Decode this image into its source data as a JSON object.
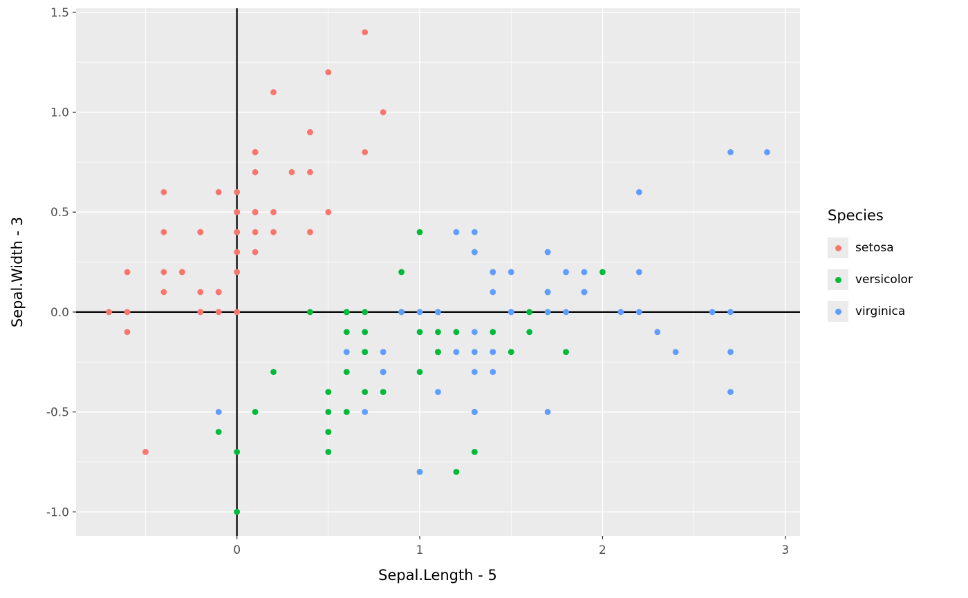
{
  "chart_data": {
    "type": "scatter",
    "title": "",
    "xlabel": "Sepal.Length - 5",
    "ylabel": "Sepal.Width - 3",
    "xlim": [
      -0.88,
      3.08
    ],
    "ylim": [
      -1.12,
      1.52
    ],
    "xticks": [
      0,
      1,
      2,
      3
    ],
    "xtick_labels": [
      "0",
      "1",
      "2",
      "3"
    ],
    "yticks": [
      -1.0,
      -0.5,
      0.0,
      0.5,
      1.0,
      1.5
    ],
    "ytick_labels": [
      "-1.0",
      "-0.5",
      "0.0",
      "0.5",
      "1.0",
      "1.5"
    ],
    "xminor": [
      -0.5,
      0.5,
      1.5,
      2.5
    ],
    "yminor": [
      -0.75,
      -0.25,
      0.25,
      0.75,
      1.25
    ],
    "grid": true,
    "panel_background": "#EBEBEB",
    "grid_major_color": "#FFFFFF",
    "grid_minor_color": "#FFFFFF",
    "tick_color": "#333333",
    "tick_label_color": "#4D4D4D",
    "point_radius": 4.4,
    "reference_lines": {
      "hline_y": 0,
      "vline_x": 0,
      "color": "#000000"
    },
    "legend": {
      "title": "Species",
      "position": "right",
      "key_background": "#EBEBEB"
    },
    "series": [
      {
        "name": "setosa",
        "color": "#F8766D",
        "points": [
          [
            0.1,
            0.5
          ],
          [
            -0.1,
            0.0
          ],
          [
            -0.3,
            0.2
          ],
          [
            -0.4,
            0.1
          ],
          [
            0.0,
            0.6
          ],
          [
            0.4,
            0.9
          ],
          [
            -0.4,
            0.4
          ],
          [
            0.0,
            0.4
          ],
          [
            -0.6,
            -0.1
          ],
          [
            -0.1,
            0.1
          ],
          [
            0.4,
            0.7
          ],
          [
            -0.2,
            0.4
          ],
          [
            -0.2,
            0.0
          ],
          [
            -0.7,
            0.0
          ],
          [
            0.8,
            1.0
          ],
          [
            0.7,
            1.4
          ],
          [
            0.4,
            0.9
          ],
          [
            0.1,
            0.5
          ],
          [
            0.7,
            0.8
          ],
          [
            0.1,
            0.8
          ],
          [
            0.4,
            0.4
          ],
          [
            0.1,
            0.7
          ],
          [
            -0.4,
            0.6
          ],
          [
            0.1,
            0.3
          ],
          [
            -0.2,
            0.4
          ],
          [
            0.0,
            0.0
          ],
          [
            0.0,
            0.4
          ],
          [
            0.2,
            0.5
          ],
          [
            0.2,
            0.4
          ],
          [
            -0.3,
            0.2
          ],
          [
            -0.2,
            0.1
          ],
          [
            0.4,
            0.4
          ],
          [
            0.2,
            1.1
          ],
          [
            0.5,
            1.2
          ],
          [
            -0.1,
            0.1
          ],
          [
            0.0,
            0.2
          ],
          [
            0.5,
            0.5
          ],
          [
            -0.1,
            0.6
          ],
          [
            -0.6,
            0.0
          ],
          [
            0.1,
            0.4
          ],
          [
            0.0,
            0.5
          ],
          [
            -0.5,
            -0.7
          ],
          [
            -0.6,
            0.2
          ],
          [
            0.0,
            0.5
          ],
          [
            0.1,
            0.8
          ],
          [
            -0.2,
            0.0
          ],
          [
            0.1,
            0.8
          ],
          [
            -0.4,
            0.2
          ],
          [
            0.3,
            0.7
          ],
          [
            0.0,
            0.3
          ]
        ]
      },
      {
        "name": "versicolor",
        "color": "#00BA38",
        "points": [
          [
            2.0,
            0.2
          ],
          [
            1.4,
            0.2
          ],
          [
            1.9,
            0.1
          ],
          [
            0.5,
            -0.7
          ],
          [
            1.5,
            -0.2
          ],
          [
            0.7,
            -0.2
          ],
          [
            1.3,
            0.3
          ],
          [
            -0.1,
            -0.6
          ],
          [
            1.6,
            -0.1
          ],
          [
            0.2,
            -0.3
          ],
          [
            0.0,
            -1.0
          ],
          [
            0.9,
            0.0
          ],
          [
            1.0,
            -0.8
          ],
          [
            1.1,
            -0.1
          ],
          [
            0.6,
            -0.1
          ],
          [
            1.7,
            0.1
          ],
          [
            0.6,
            0.0
          ],
          [
            0.8,
            -0.3
          ],
          [
            1.2,
            -0.8
          ],
          [
            0.6,
            -0.5
          ],
          [
            0.9,
            0.2
          ],
          [
            1.1,
            -0.2
          ],
          [
            1.3,
            -0.5
          ],
          [
            1.1,
            -0.2
          ],
          [
            1.4,
            -0.1
          ],
          [
            1.6,
            0.0
          ],
          [
            1.8,
            -0.2
          ],
          [
            1.7,
            0.0
          ],
          [
            1.0,
            -0.1
          ],
          [
            0.7,
            -0.4
          ],
          [
            0.5,
            -0.6
          ],
          [
            0.5,
            -0.6
          ],
          [
            0.8,
            -0.3
          ],
          [
            1.0,
            -0.3
          ],
          [
            0.4,
            0.0
          ],
          [
            1.0,
            0.4
          ],
          [
            1.7,
            0.1
          ],
          [
            1.3,
            -0.7
          ],
          [
            0.6,
            0.0
          ],
          [
            0.5,
            -0.5
          ],
          [
            0.5,
            -0.4
          ],
          [
            1.1,
            0.0
          ],
          [
            0.8,
            -0.4
          ],
          [
            0.0,
            -0.7
          ],
          [
            0.6,
            -0.3
          ],
          [
            0.7,
            0.0
          ],
          [
            0.7,
            -0.1
          ],
          [
            1.2,
            -0.1
          ],
          [
            0.1,
            -0.5
          ],
          [
            0.7,
            -0.2
          ]
        ]
      },
      {
        "name": "virginica",
        "color": "#619CFF",
        "points": [
          [
            1.3,
            0.3
          ],
          [
            0.8,
            -0.3
          ],
          [
            2.1,
            0.0
          ],
          [
            1.3,
            -0.1
          ],
          [
            1.5,
            0.0
          ],
          [
            2.6,
            0.0
          ],
          [
            -0.1,
            -0.5
          ],
          [
            2.3,
            -0.1
          ],
          [
            1.7,
            -0.5
          ],
          [
            2.2,
            0.6
          ],
          [
            1.5,
            0.2
          ],
          [
            1.4,
            -0.3
          ],
          [
            1.8,
            0.0
          ],
          [
            0.7,
            -0.5
          ],
          [
            0.8,
            -0.2
          ],
          [
            1.4,
            0.2
          ],
          [
            1.5,
            0.0
          ],
          [
            2.7,
            0.8
          ],
          [
            2.7,
            -0.4
          ],
          [
            1.0,
            -0.8
          ],
          [
            1.9,
            0.2
          ],
          [
            0.6,
            -0.2
          ],
          [
            2.7,
            -0.2
          ],
          [
            1.3,
            -0.3
          ],
          [
            1.7,
            0.3
          ],
          [
            2.2,
            0.2
          ],
          [
            1.2,
            -0.2
          ],
          [
            1.1,
            0.0
          ],
          [
            1.4,
            -0.2
          ],
          [
            2.2,
            0.0
          ],
          [
            2.4,
            -0.2
          ],
          [
            2.9,
            0.8
          ],
          [
            1.4,
            -0.2
          ],
          [
            1.3,
            -0.2
          ],
          [
            1.1,
            -0.4
          ],
          [
            2.7,
            0.0
          ],
          [
            1.3,
            0.4
          ],
          [
            1.4,
            0.1
          ],
          [
            1.0,
            0.0
          ],
          [
            1.9,
            0.1
          ],
          [
            1.7,
            0.1
          ],
          [
            1.9,
            0.1
          ],
          [
            0.8,
            -0.3
          ],
          [
            1.8,
            0.2
          ],
          [
            1.7,
            0.3
          ],
          [
            1.7,
            0.0
          ],
          [
            1.3,
            -0.5
          ],
          [
            1.5,
            0.0
          ],
          [
            1.2,
            0.4
          ],
          [
            0.9,
            0.0
          ]
        ]
      }
    ]
  }
}
